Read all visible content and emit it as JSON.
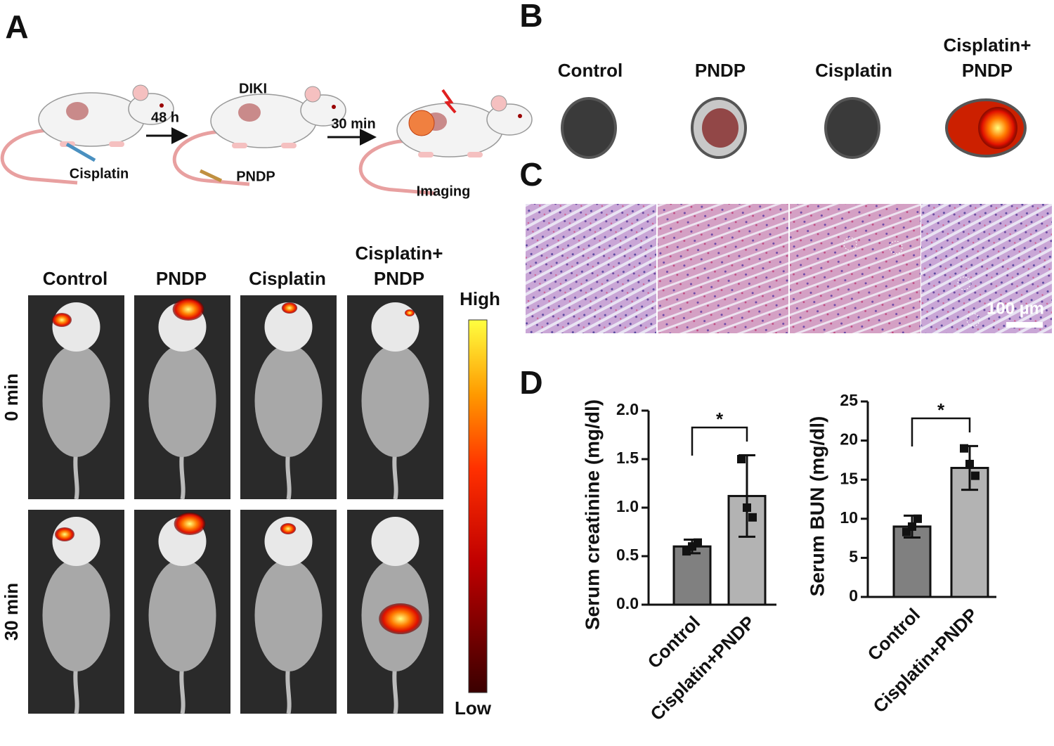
{
  "panel_a": {
    "letter": "A",
    "steps": [
      "48 h",
      "30 min"
    ],
    "labels": {
      "diki": "DIKI",
      "cisplatin": "Cisplatin",
      "pndp": "PNDP",
      "imaging": "Imaging"
    },
    "columns": [
      [
        "Control"
      ],
      [
        "PNDP"
      ],
      [
        "Cisplatin"
      ],
      [
        "Cisplatin+",
        "PNDP"
      ]
    ],
    "rows": [
      "0 min",
      "30 min"
    ],
    "colorbar": {
      "high": "High",
      "low": "Low"
    }
  },
  "panel_b": {
    "letter": "B",
    "columns": [
      [
        "Control"
      ],
      [
        "PNDP"
      ],
      [
        "Cisplatin"
      ],
      [
        "Cisplatin+",
        "PNDP"
      ]
    ]
  },
  "panel_c": {
    "letter": "C",
    "scale_bar": "100 µm"
  },
  "panel_d": {
    "letter": "D"
  },
  "chart_data": [
    {
      "type": "bar",
      "y_label": "Serum creatinine (mg/dl)",
      "categories": [
        "Control",
        "Cisplatin+PNDP"
      ],
      "values": [
        0.6,
        1.12
      ],
      "errors": [
        0.07,
        0.42
      ],
      "colors": [
        "#808080",
        "#b3b3b3"
      ],
      "points": [
        [
          0.55,
          0.6,
          0.64
        ],
        [
          1.5,
          1.0,
          0.9
        ]
      ],
      "ylim": [
        0,
        2
      ],
      "yticks": [
        {
          "value": 0,
          "label": "0.0"
        },
        {
          "value": 0.5,
          "label": "0.5"
        },
        {
          "value": 1,
          "label": "1.0"
        },
        {
          "value": 1.5,
          "label": "1.5"
        },
        {
          "value": 2,
          "label": "2.0"
        }
      ],
      "significance": "*"
    },
    {
      "type": "bar",
      "y_label": "Serum BUN (mg/dl)",
      "categories": [
        "Control",
        "Cisplatin+PNDP"
      ],
      "values": [
        9,
        16.5
      ],
      "errors": [
        1.4,
        2.8
      ],
      "colors": [
        "#808080",
        "#b3b3b3"
      ],
      "points": [
        [
          8.3,
          9,
          10
        ],
        [
          19,
          17,
          15.5
        ]
      ],
      "ylim": [
        0,
        25
      ],
      "yticks": [
        0,
        5,
        10,
        15,
        20,
        25
      ],
      "significance": "*"
    }
  ]
}
